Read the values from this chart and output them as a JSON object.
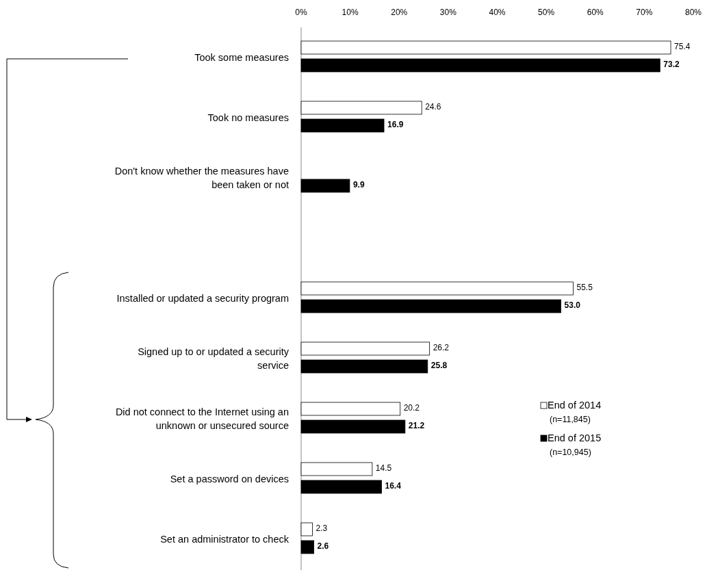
{
  "chart_data": {
    "type": "bar",
    "orientation": "horizontal",
    "categories": [
      "Took some measures",
      "Took no measures",
      "Don't know whether the measures have been taken or not",
      null,
      "Installed or updated a security program",
      "Signed up to or updated a security service",
      "Did not connect to the Internet using an unknown or unsecured source",
      "Set a password on devices",
      "Set an administrator to check"
    ],
    "series": [
      {
        "name": "End of 2014",
        "color": "#ffffff",
        "values": [
          75.4,
          24.6,
          null,
          null,
          55.5,
          26.2,
          20.2,
          14.5,
          2.3
        ],
        "value_labels": [
          "75.4",
          "24.6",
          null,
          null,
          "55.5",
          "26.2",
          "20.2",
          "14.5",
          "2.3"
        ]
      },
      {
        "name": "End of 2015",
        "color": "#000000",
        "values": [
          73.2,
          16.9,
          9.9,
          null,
          53.0,
          25.8,
          21.2,
          16.4,
          2.6
        ],
        "value_labels": [
          "73.2",
          "16.9",
          "9.9",
          null,
          "53.0",
          "25.8",
          "21.2",
          "16.4",
          "2.6"
        ]
      }
    ],
    "xlim": [
      0,
      80
    ],
    "xticks": [
      {
        "value": 0,
        "label": "0%"
      },
      {
        "value": 10,
        "label": "10%"
      },
      {
        "value": 20,
        "label": "20%"
      },
      {
        "value": 30,
        "label": "30%"
      },
      {
        "value": 40,
        "label": "40%"
      },
      {
        "value": 50,
        "label": "50%"
      },
      {
        "value": 60,
        "label": "60%"
      },
      {
        "value": 70,
        "label": "70%"
      },
      {
        "value": 80,
        "label": "80%"
      }
    ],
    "grid": false,
    "legend": "right",
    "annotations": [
      "(n=11,845)",
      "(n=10,945)"
    ]
  }
}
